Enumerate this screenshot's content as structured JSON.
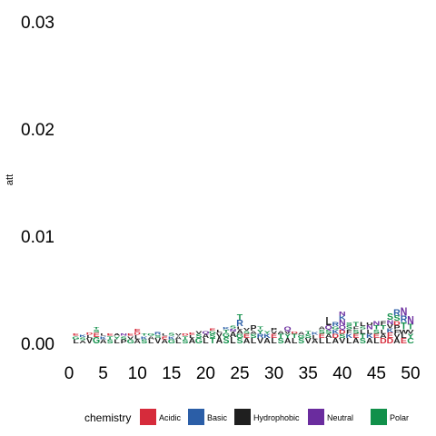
{
  "chart_data": {
    "type": "sequence-logo",
    "ylabel": "att",
    "xlabel": "",
    "ylim": [
      0,
      0.03
    ],
    "y_ticks": [
      "0.00",
      "0.01",
      "0.02",
      "0.03"
    ],
    "y_tick_values": [
      0,
      0.01,
      0.02,
      0.03
    ],
    "x_ticks": [
      "0",
      "5",
      "10",
      "15",
      "20",
      "25",
      "30",
      "35",
      "40",
      "45",
      "50"
    ],
    "x_tick_values": [
      0,
      5,
      10,
      15,
      20,
      25,
      30,
      35,
      40,
      45,
      50
    ],
    "xlim": [
      0,
      50
    ],
    "grid": false,
    "legend": {
      "title": "chemistry",
      "placement": "bottom",
      "entries": [
        {
          "name": "Acidic",
          "color": "#d62b3b"
        },
        {
          "name": "Basic",
          "color": "#2b5ea7"
        },
        {
          "name": "Hydrophobic",
          "color": "#1f1f1f"
        },
        {
          "name": "Neutral",
          "color": "#6a2c9e"
        },
        {
          "name": "Polar",
          "color": "#11904a"
        }
      ]
    },
    "letter_chemistry": {
      "D": "Acidic",
      "E": "Acidic",
      "K": "Basic",
      "R": "Basic",
      "H": "Basic",
      "A": "Hydrophobic",
      "V": "Hydrophobic",
      "L": "Hydrophobic",
      "I": "Hydrophobic",
      "P": "Hydrophobic",
      "W": "Hydrophobic",
      "F": "Hydrophobic",
      "M": "Hydrophobic",
      "Q": "Neutral",
      "N": "Neutral",
      "S": "Polar",
      "G": "Polar",
      "H2": "Polar",
      "T": "Polar",
      "Y": "Polar",
      "C": "Polar"
    },
    "positions": [
      {
        "x": 1,
        "stack": [
          [
            "L",
            0.0004
          ],
          [
            "G",
            0.0003
          ],
          [
            "E",
            0.0002
          ]
        ]
      },
      {
        "x": 2,
        "stack": [
          [
            "A",
            0.0003
          ],
          [
            "S",
            0.0003
          ],
          [
            "K",
            0.0002
          ]
        ]
      },
      {
        "x": 3,
        "stack": [
          [
            "V",
            0.0005
          ],
          [
            "L",
            0.0003
          ],
          [
            "D",
            0.0002
          ]
        ]
      },
      {
        "x": 4,
        "stack": [
          [
            "G",
            0.0006
          ],
          [
            "E",
            0.0004
          ],
          [
            "S",
            0.0003
          ],
          [
            "T",
            0.0002
          ]
        ]
      },
      {
        "x": 5,
        "stack": [
          [
            "A",
            0.0004
          ],
          [
            "K",
            0.0003
          ],
          [
            "L",
            0.0002
          ]
        ]
      },
      {
        "x": 6,
        "stack": [
          [
            "S",
            0.0004
          ],
          [
            "T",
            0.0003
          ],
          [
            "E",
            0.0002
          ]
        ]
      },
      {
        "x": 7,
        "stack": [
          [
            "L",
            0.0004
          ],
          [
            "Y",
            0.0003
          ],
          [
            "A",
            0.0002
          ]
        ]
      },
      {
        "x": 8,
        "stack": [
          [
            "P",
            0.0004
          ],
          [
            "S",
            0.0003
          ],
          [
            "N",
            0.0002
          ]
        ]
      },
      {
        "x": 9,
        "stack": [
          [
            "G",
            0.0004
          ],
          [
            "V",
            0.0003
          ],
          [
            "E",
            0.0002
          ]
        ]
      },
      {
        "x": 10,
        "stack": [
          [
            "A",
            0.0004
          ],
          [
            "L",
            0.0004
          ],
          [
            "D",
            0.0003
          ],
          [
            "E",
            0.0003
          ]
        ]
      },
      {
        "x": 11,
        "stack": [
          [
            "S",
            0.0004
          ],
          [
            "K",
            0.0003
          ],
          [
            "T",
            0.0002
          ]
        ]
      },
      {
        "x": 12,
        "stack": [
          [
            "L",
            0.0004
          ],
          [
            "A",
            0.0003
          ],
          [
            "G",
            0.0002
          ]
        ]
      },
      {
        "x": 13,
        "stack": [
          [
            "V",
            0.0005
          ],
          [
            "S",
            0.0003
          ],
          [
            "R",
            0.0003
          ]
        ]
      },
      {
        "x": 14,
        "stack": [
          [
            "A",
            0.0004
          ],
          [
            "E",
            0.0003
          ],
          [
            "L",
            0.0002
          ]
        ]
      },
      {
        "x": 15,
        "stack": [
          [
            "G",
            0.0004
          ],
          [
            "K",
            0.0003
          ],
          [
            "S",
            0.0003
          ]
        ]
      },
      {
        "x": 16,
        "stack": [
          [
            "L",
            0.0004
          ],
          [
            "A",
            0.0003
          ],
          [
            "V",
            0.0002
          ]
        ]
      },
      {
        "x": 17,
        "stack": [
          [
            "S",
            0.0004
          ],
          [
            "T",
            0.0003
          ],
          [
            "D",
            0.0002
          ]
        ]
      },
      {
        "x": 18,
        "stack": [
          [
            "A",
            0.0005
          ],
          [
            "L",
            0.0003
          ],
          [
            "E",
            0.0002
          ]
        ]
      },
      {
        "x": 19,
        "stack": [
          [
            "G",
            0.0005
          ],
          [
            "S",
            0.0004
          ],
          [
            "V",
            0.0003
          ]
        ]
      },
      {
        "x": 20,
        "stack": [
          [
            "L",
            0.0005
          ],
          [
            "A",
            0.0004
          ],
          [
            "Q",
            0.0003
          ]
        ]
      },
      {
        "x": 21,
        "stack": [
          [
            "T",
            0.0005
          ],
          [
            "S",
            0.0004
          ],
          [
            "G",
            0.0003
          ],
          [
            "E",
            0.0002
          ]
        ]
      },
      {
        "x": 22,
        "stack": [
          [
            "A",
            0.0006
          ],
          [
            "V",
            0.0004
          ],
          [
            "L",
            0.0003
          ]
        ]
      },
      {
        "x": 23,
        "stack": [
          [
            "S",
            0.0006
          ],
          [
            "G",
            0.0004
          ],
          [
            "T",
            0.0003
          ],
          [
            "K",
            0.0002
          ]
        ]
      },
      {
        "x": 24,
        "stack": [
          [
            "L",
            0.0006
          ],
          [
            "A",
            0.0005
          ],
          [
            "N",
            0.0003
          ],
          [
            "S",
            0.0003
          ]
        ]
      },
      {
        "x": 25,
        "stack": [
          [
            "S",
            0.0005
          ],
          [
            "G",
            0.0004
          ],
          [
            "A",
            0.0004
          ],
          [
            "L",
            0.0003
          ],
          [
            "R",
            0.0006
          ],
          [
            "T",
            0.0005
          ]
        ]
      },
      {
        "x": 26,
        "stack": [
          [
            "A",
            0.0005
          ],
          [
            "E",
            0.0004
          ],
          [
            "S",
            0.0003
          ],
          [
            "V",
            0.0003
          ]
        ]
      },
      {
        "x": 27,
        "stack": [
          [
            "L",
            0.0005
          ],
          [
            "S",
            0.0004
          ],
          [
            "A",
            0.0003
          ],
          [
            "P",
            0.0005
          ]
        ]
      },
      {
        "x": 28,
        "stack": [
          [
            "V",
            0.0005
          ],
          [
            "R",
            0.0004
          ],
          [
            "Y",
            0.0004
          ],
          [
            "T",
            0.0003
          ]
        ]
      },
      {
        "x": 29,
        "stack": [
          [
            "A",
            0.0005
          ],
          [
            "K",
            0.0004
          ],
          [
            "Y",
            0.0003
          ]
        ]
      },
      {
        "x": 30,
        "stack": [
          [
            "L",
            0.0005
          ],
          [
            "E",
            0.0004
          ],
          [
            "V",
            0.0003
          ],
          [
            "P",
            0.0003
          ]
        ]
      },
      {
        "x": 31,
        "stack": [
          [
            "S",
            0.0005
          ],
          [
            "T",
            0.0004
          ],
          [
            "A",
            0.0003
          ]
        ]
      },
      {
        "x": 32,
        "stack": [
          [
            "A",
            0.0005
          ],
          [
            "Y",
            0.0004
          ],
          [
            "V",
            0.0003
          ],
          [
            "Q",
            0.0004
          ]
        ]
      },
      {
        "x": 33,
        "stack": [
          [
            "L",
            0.0005
          ],
          [
            "T",
            0.0004
          ],
          [
            "D",
            0.0002
          ]
        ]
      },
      {
        "x": 34,
        "stack": [
          [
            "S",
            0.0005
          ],
          [
            "G",
            0.0003
          ],
          [
            "A",
            0.0003
          ]
        ]
      },
      {
        "x": 35,
        "stack": [
          [
            "V",
            0.0005
          ],
          [
            "S",
            0.0004
          ],
          [
            "T",
            0.0003
          ]
        ]
      },
      {
        "x": 36,
        "stack": [
          [
            "A",
            0.0004
          ],
          [
            "L",
            0.0004
          ],
          [
            "K",
            0.0003
          ]
        ]
      },
      {
        "x": 37,
        "stack": [
          [
            "L",
            0.0005
          ],
          [
            "E",
            0.0004
          ],
          [
            "S",
            0.0004
          ],
          [
            "A",
            0.0003
          ]
        ]
      },
      {
        "x": 38,
        "stack": [
          [
            "L",
            0.0005
          ],
          [
            "A",
            0.0004
          ],
          [
            "S",
            0.0004
          ],
          [
            "Q",
            0.0004
          ],
          [
            "L",
            0.0008
          ]
        ]
      },
      {
        "x": 39,
        "stack": [
          [
            "A",
            0.0005
          ],
          [
            "D",
            0.0004
          ],
          [
            "K",
            0.0004
          ],
          [
            "G",
            0.0003
          ],
          [
            "R",
            0.0004
          ]
        ]
      },
      {
        "x": 40,
        "stack": [
          [
            "V",
            0.0005
          ],
          [
            "S",
            0.0004
          ],
          [
            "D",
            0.0004
          ],
          [
            "Q",
            0.0004
          ],
          [
            "N",
            0.0005
          ],
          [
            "K",
            0.0004
          ],
          [
            "N",
            0.0004
          ]
        ]
      },
      {
        "x": 41,
        "stack": [
          [
            "L",
            0.0005
          ],
          [
            "K",
            0.0004
          ],
          [
            "F",
            0.0004
          ],
          [
            "S",
            0.0004
          ],
          [
            "S",
            0.0003
          ]
        ]
      },
      {
        "x": 42,
        "stack": [
          [
            "A",
            0.0005
          ],
          [
            "E",
            0.0004
          ],
          [
            "S",
            0.0004
          ],
          [
            "F",
            0.0003
          ],
          [
            "T",
            0.0004
          ]
        ]
      },
      {
        "x": 43,
        "stack": [
          [
            "S",
            0.0005
          ],
          [
            "T",
            0.0004
          ],
          [
            "L",
            0.0004
          ],
          [
            "S",
            0.0003
          ],
          [
            "L",
            0.0004
          ]
        ]
      },
      {
        "x": 44,
        "stack": [
          [
            "A",
            0.0005
          ],
          [
            "K",
            0.0004
          ],
          [
            "L",
            0.0004
          ],
          [
            "N",
            0.0004
          ],
          [
            "U",
            0.0003
          ]
        ]
      },
      {
        "x": 45,
        "stack": [
          [
            "L",
            0.0005
          ],
          [
            "E",
            0.0004
          ],
          [
            "S",
            0.0004
          ],
          [
            "T",
            0.0004
          ],
          [
            "N",
            0.0004
          ]
        ]
      },
      {
        "x": 46,
        "stack": [
          [
            "D",
            0.0005
          ],
          [
            "A",
            0.0004
          ],
          [
            "L",
            0.0004
          ],
          [
            "T",
            0.0004
          ],
          [
            "F",
            0.0004
          ]
        ]
      },
      {
        "x": 47,
        "stack": [
          [
            "D",
            0.0005
          ],
          [
            "E",
            0.0005
          ],
          [
            "K",
            0.0004
          ],
          [
            "V",
            0.0004
          ],
          [
            "N",
            0.0004
          ],
          [
            "S",
            0.0006
          ]
        ]
      },
      {
        "x": 48,
        "stack": [
          [
            "A",
            0.0005
          ],
          [
            "V",
            0.0004
          ],
          [
            "F",
            0.0004
          ],
          [
            "P",
            0.0004
          ],
          [
            "D",
            0.0004
          ],
          [
            "S",
            0.0005
          ],
          [
            "R",
            0.0006
          ]
        ]
      },
      {
        "x": 49,
        "stack": [
          [
            "E",
            0.0005
          ],
          [
            "L",
            0.0004
          ],
          [
            "W",
            0.0004
          ],
          [
            "T",
            0.0007
          ],
          [
            "R",
            0.0006
          ],
          [
            "N",
            0.0008
          ]
        ]
      },
      {
        "x": 50,
        "stack": [
          [
            "C",
            0.0005
          ],
          [
            "Y",
            0.0004
          ],
          [
            "V",
            0.0004
          ],
          [
            "T",
            0.0005
          ],
          [
            "N",
            0.0008
          ]
        ]
      }
    ]
  }
}
